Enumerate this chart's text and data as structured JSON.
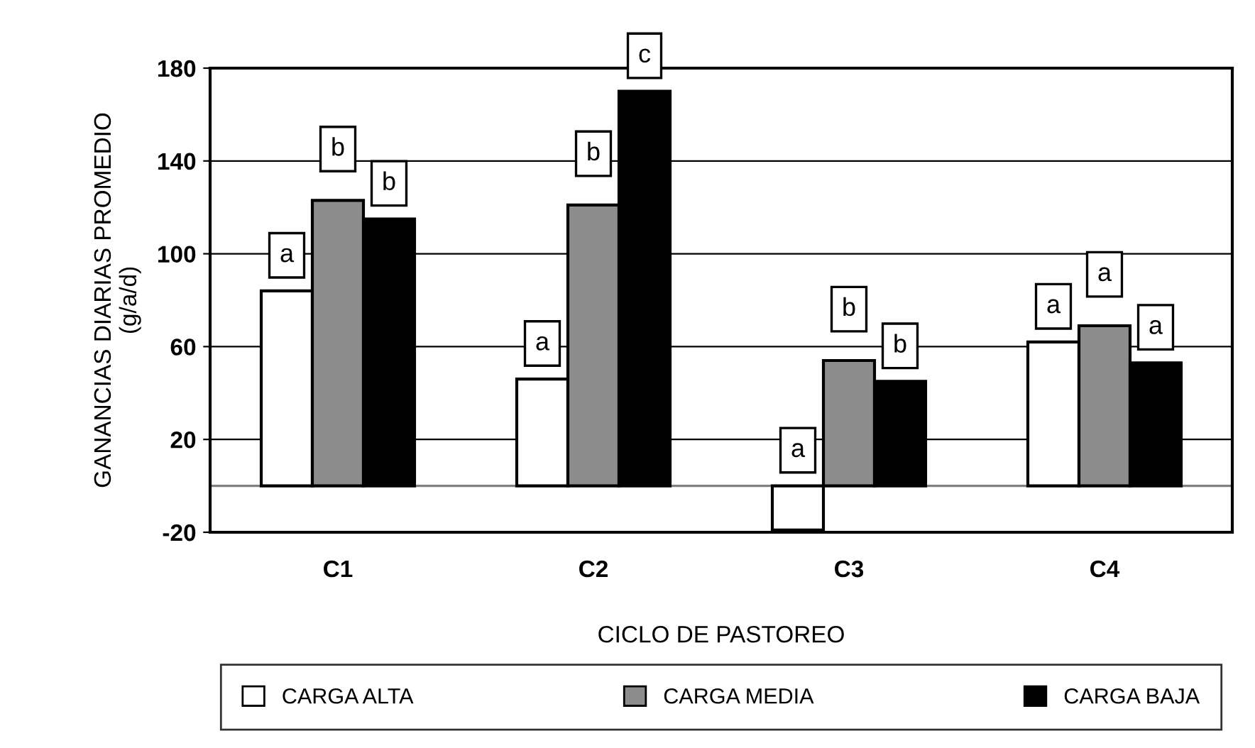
{
  "chart_data": {
    "type": "bar",
    "xlabel": "CICLO DE PASTOREO",
    "ylabel": "GANANCIAS DIARIAS PROMEDIO\n(g/a/d)",
    "categories": [
      "C1",
      "C2",
      "C3",
      "C4"
    ],
    "series": [
      {
        "name": "CARGA ALTA",
        "color": "#ffffff",
        "values": [
          84,
          46,
          -19,
          62
        ],
        "value_labels": [
          "a",
          "a",
          "a",
          "a"
        ]
      },
      {
        "name": "CARGA MEDIA",
        "color": "#8c8c8c",
        "values": [
          123,
          121,
          54,
          69
        ],
        "value_labels": [
          "b",
          "b",
          "b",
          "a"
        ]
      },
      {
        "name": "CARGA BAJA",
        "color": "#000000",
        "values": [
          115,
          170,
          45,
          53
        ],
        "value_labels": [
          "b",
          "c",
          "b",
          "a"
        ]
      }
    ],
    "ylim": [
      -20,
      180
    ],
    "yticks": [
      -20,
      20,
      60,
      100,
      140,
      180
    ],
    "grid": "y",
    "legend": "bottom"
  }
}
